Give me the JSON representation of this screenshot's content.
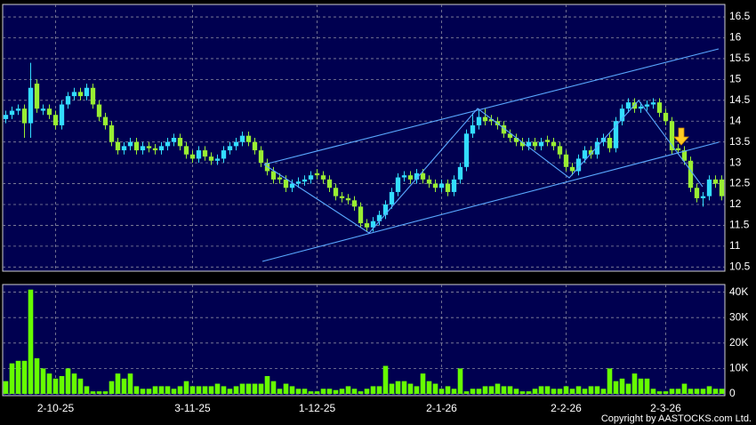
{
  "chart_data": [
    {
      "type": "candlestick",
      "categories": [
        null,
        null,
        null,
        null,
        null,
        null,
        null,
        null,
        "2-10-25",
        null,
        null,
        null,
        null,
        null,
        null,
        null,
        null,
        null,
        null,
        null,
        null,
        null,
        null,
        null,
        null,
        null,
        null,
        null,
        null,
        null,
        "3-11-25",
        null,
        null,
        null,
        null,
        null,
        null,
        null,
        null,
        null,
        null,
        null,
        null,
        null,
        null,
        null,
        null,
        null,
        null,
        null,
        "1-12-25",
        null,
        null,
        null,
        null,
        null,
        null,
        null,
        null,
        null,
        null,
        null,
        null,
        null,
        null,
        null,
        null,
        null,
        null,
        null,
        "2-1-26",
        null,
        null,
        null,
        null,
        null,
        null,
        null,
        null,
        null,
        null,
        null,
        null,
        null,
        null,
        null,
        null,
        null,
        null,
        null,
        "2-2-26",
        null,
        null,
        null,
        null,
        null,
        null,
        null,
        null,
        null,
        null,
        null,
        null,
        null,
        null,
        null,
        "2-3-26",
        null,
        null,
        null,
        null,
        null,
        null,
        null,
        null,
        null
      ],
      "open": [
        14.05,
        14.15,
        14.25,
        14.3,
        13.95,
        14.9,
        14.25,
        14.3,
        14.15,
        13.9,
        14.4,
        14.6,
        14.7,
        14.6,
        14.8,
        14.4,
        14.1,
        13.9,
        13.5,
        13.3,
        13.4,
        13.5,
        13.3,
        13.4,
        13.35,
        13.3,
        13.4,
        13.5,
        13.6,
        13.4,
        13.2,
        13.1,
        13.3,
        13.15,
        13.05,
        13.1,
        13.3,
        13.4,
        13.5,
        13.65,
        13.5,
        13.3,
        13.0,
        12.8,
        12.65,
        12.6,
        12.4,
        12.5,
        12.55,
        12.6,
        12.75,
        12.7,
        12.6,
        12.4,
        12.2,
        12.15,
        12.1,
        11.95,
        11.55,
        11.45,
        11.6,
        11.75,
        12.0,
        12.3,
        12.65,
        12.7,
        12.6,
        12.75,
        12.6,
        12.5,
        12.4,
        12.5,
        12.3,
        12.6,
        12.9,
        13.7,
        13.9,
        14.1,
        14.05,
        14.0,
        13.9,
        13.7,
        13.6,
        13.5,
        13.4,
        13.5,
        13.4,
        13.55,
        13.5,
        13.4,
        13.2,
        12.9,
        12.8,
        13.1,
        13.3,
        13.2,
        13.5,
        13.6,
        13.35,
        14.0,
        14.3,
        14.45,
        14.3,
        14.35,
        14.4,
        14.45,
        14.2,
        14.0,
        13.35,
        13.3,
        13.05,
        12.4,
        12.15,
        12.2,
        12.6,
        12.6
      ],
      "high": [
        14.25,
        14.35,
        14.4,
        14.4,
        15.4,
        15.0,
        14.4,
        14.4,
        14.25,
        14.5,
        14.7,
        14.8,
        14.8,
        14.9,
        14.9,
        14.5,
        14.2,
        14.0,
        13.6,
        13.5,
        13.6,
        13.6,
        13.5,
        13.5,
        13.45,
        13.5,
        13.6,
        13.7,
        13.7,
        13.5,
        13.3,
        13.4,
        13.4,
        13.25,
        13.2,
        13.4,
        13.5,
        13.6,
        13.75,
        13.75,
        13.6,
        13.4,
        13.1,
        12.9,
        12.75,
        12.7,
        12.6,
        12.65,
        12.7,
        12.8,
        12.85,
        12.8,
        12.7,
        12.5,
        12.3,
        12.25,
        12.2,
        12.05,
        11.65,
        11.7,
        11.85,
        12.1,
        12.4,
        12.75,
        12.8,
        12.8,
        12.85,
        12.85,
        12.7,
        12.6,
        12.6,
        12.6,
        12.7,
        13.0,
        13.8,
        14.2,
        14.3,
        14.3,
        14.15,
        14.1,
        14.0,
        13.8,
        13.7,
        13.6,
        13.6,
        13.6,
        13.6,
        13.65,
        13.6,
        13.5,
        13.3,
        13.0,
        13.2,
        13.4,
        13.4,
        13.6,
        13.7,
        13.7,
        14.1,
        14.4,
        14.55,
        14.55,
        14.45,
        14.5,
        14.55,
        14.55,
        14.3,
        14.1,
        13.45,
        13.4,
        13.15,
        12.5,
        12.3,
        12.7,
        12.7,
        12.7
      ],
      "low": [
        13.95,
        14.05,
        14.15,
        13.6,
        13.6,
        14.2,
        14.15,
        14.05,
        13.8,
        13.8,
        14.3,
        14.5,
        14.5,
        14.5,
        14.3,
        14.0,
        13.8,
        13.4,
        13.2,
        13.2,
        13.3,
        13.2,
        13.2,
        13.25,
        13.2,
        13.2,
        13.3,
        13.4,
        13.3,
        13.1,
        13.0,
        13.0,
        13.05,
        12.95,
        12.95,
        13.0,
        13.2,
        13.3,
        13.4,
        13.4,
        13.2,
        12.9,
        12.7,
        12.5,
        12.5,
        12.3,
        12.3,
        12.4,
        12.45,
        12.5,
        12.6,
        12.5,
        12.3,
        12.1,
        12.05,
        12.0,
        11.85,
        11.45,
        11.35,
        11.35,
        11.5,
        11.65,
        11.9,
        12.2,
        12.55,
        12.5,
        12.5,
        12.5,
        12.4,
        12.3,
        12.3,
        12.2,
        12.2,
        12.5,
        12.8,
        13.6,
        13.8,
        13.9,
        13.9,
        13.8,
        13.6,
        13.5,
        13.4,
        13.3,
        13.3,
        13.3,
        13.3,
        13.4,
        13.3,
        13.1,
        12.8,
        12.7,
        12.7,
        13.0,
        13.1,
        13.1,
        13.4,
        13.25,
        13.25,
        13.9,
        14.2,
        14.2,
        14.2,
        14.25,
        14.3,
        14.1,
        13.9,
        13.2,
        13.2,
        12.95,
        12.3,
        12.05,
        11.95,
        12.1,
        12.4,
        12.1
      ],
      "close": [
        14.15,
        14.25,
        14.3,
        13.95,
        14.8,
        14.3,
        14.3,
        14.15,
        13.9,
        14.4,
        14.6,
        14.7,
        14.6,
        14.8,
        14.4,
        14.1,
        13.9,
        13.5,
        13.3,
        13.4,
        13.5,
        13.3,
        13.4,
        13.35,
        13.3,
        13.4,
        13.5,
        13.6,
        13.4,
        13.2,
        13.1,
        13.3,
        13.15,
        13.05,
        13.1,
        13.3,
        13.4,
        13.5,
        13.65,
        13.5,
        13.3,
        13.0,
        12.8,
        12.6,
        12.6,
        12.4,
        12.5,
        12.55,
        12.6,
        12.7,
        12.7,
        12.6,
        12.4,
        12.2,
        12.15,
        12.1,
        11.95,
        11.55,
        11.45,
        11.6,
        11.75,
        12.0,
        12.3,
        12.65,
        12.7,
        12.6,
        12.75,
        12.6,
        12.5,
        12.4,
        12.5,
        12.3,
        12.6,
        12.9,
        13.7,
        13.9,
        14.1,
        14.0,
        14.0,
        13.9,
        13.7,
        13.6,
        13.5,
        13.4,
        13.5,
        13.4,
        13.5,
        13.5,
        13.4,
        13.2,
        12.9,
        12.8,
        13.1,
        13.3,
        13.2,
        13.5,
        13.6,
        13.35,
        14.0,
        14.3,
        14.45,
        14.3,
        14.35,
        14.4,
        14.45,
        14.2,
        14.0,
        13.3,
        13.3,
        13.05,
        12.4,
        12.15,
        12.2,
        12.6,
        12.5,
        12.2
      ],
      "up_color": "#33ddff",
      "down_color": "#99ee33",
      "ylim": [
        10.4,
        16.8
      ],
      "yticks": [
        10.5,
        11,
        11.5,
        12,
        12.5,
        13,
        13.5,
        14,
        14.5,
        15,
        15.5,
        16,
        16.5
      ],
      "grid": true
    },
    {
      "type": "bar",
      "values": [
        5000,
        12000,
        13000,
        13000,
        41000,
        14000,
        10000,
        8000,
        6000,
        7000,
        10000,
        8000,
        6000,
        3000,
        1000,
        1000,
        1000,
        5000,
        8000,
        6000,
        8000,
        3000,
        2000,
        2000,
        3000,
        3000,
        3000,
        2000,
        3000,
        5000,
        3000,
        3000,
        3000,
        3000,
        4000,
        3000,
        2000,
        3000,
        4000,
        4000,
        4000,
        4000,
        7000,
        5000,
        2000,
        4000,
        3000,
        2000,
        2000,
        1000,
        1000,
        2000,
        2000,
        1500,
        2000,
        3000,
        2000,
        1000,
        2000,
        3000,
        3000,
        11000,
        4000,
        5000,
        5000,
        4000,
        3000,
        8000,
        5000,
        4000,
        2000,
        3000,
        2000,
        10000,
        1000,
        2000,
        2000,
        3000,
        3000,
        4000,
        3000,
        3000,
        2000,
        1000,
        1000,
        2000,
        3000,
        3000,
        2000,
        2000,
        3000,
        2000,
        3000,
        2000,
        3000,
        3000,
        2000,
        10000,
        5000,
        6000,
        4000,
        8000,
        6000,
        6000,
        2000,
        1000,
        1000,
        2000,
        2000,
        4000,
        2000,
        2000,
        2000,
        3000,
        2000,
        2000
      ],
      "color": "#66ff00",
      "ylim": [
        0,
        43000
      ],
      "yticks": [
        0,
        {
          "value": 10000,
          "label": "10K"
        },
        {
          "value": 20000,
          "label": "20K"
        },
        {
          "value": 30000,
          "label": "30K"
        },
        {
          "value": 40000,
          "label": "40K"
        }
      ],
      "grid": true
    }
  ],
  "footer": {
    "copyright": "Copyright by AASTOCKS.com Ltd."
  }
}
